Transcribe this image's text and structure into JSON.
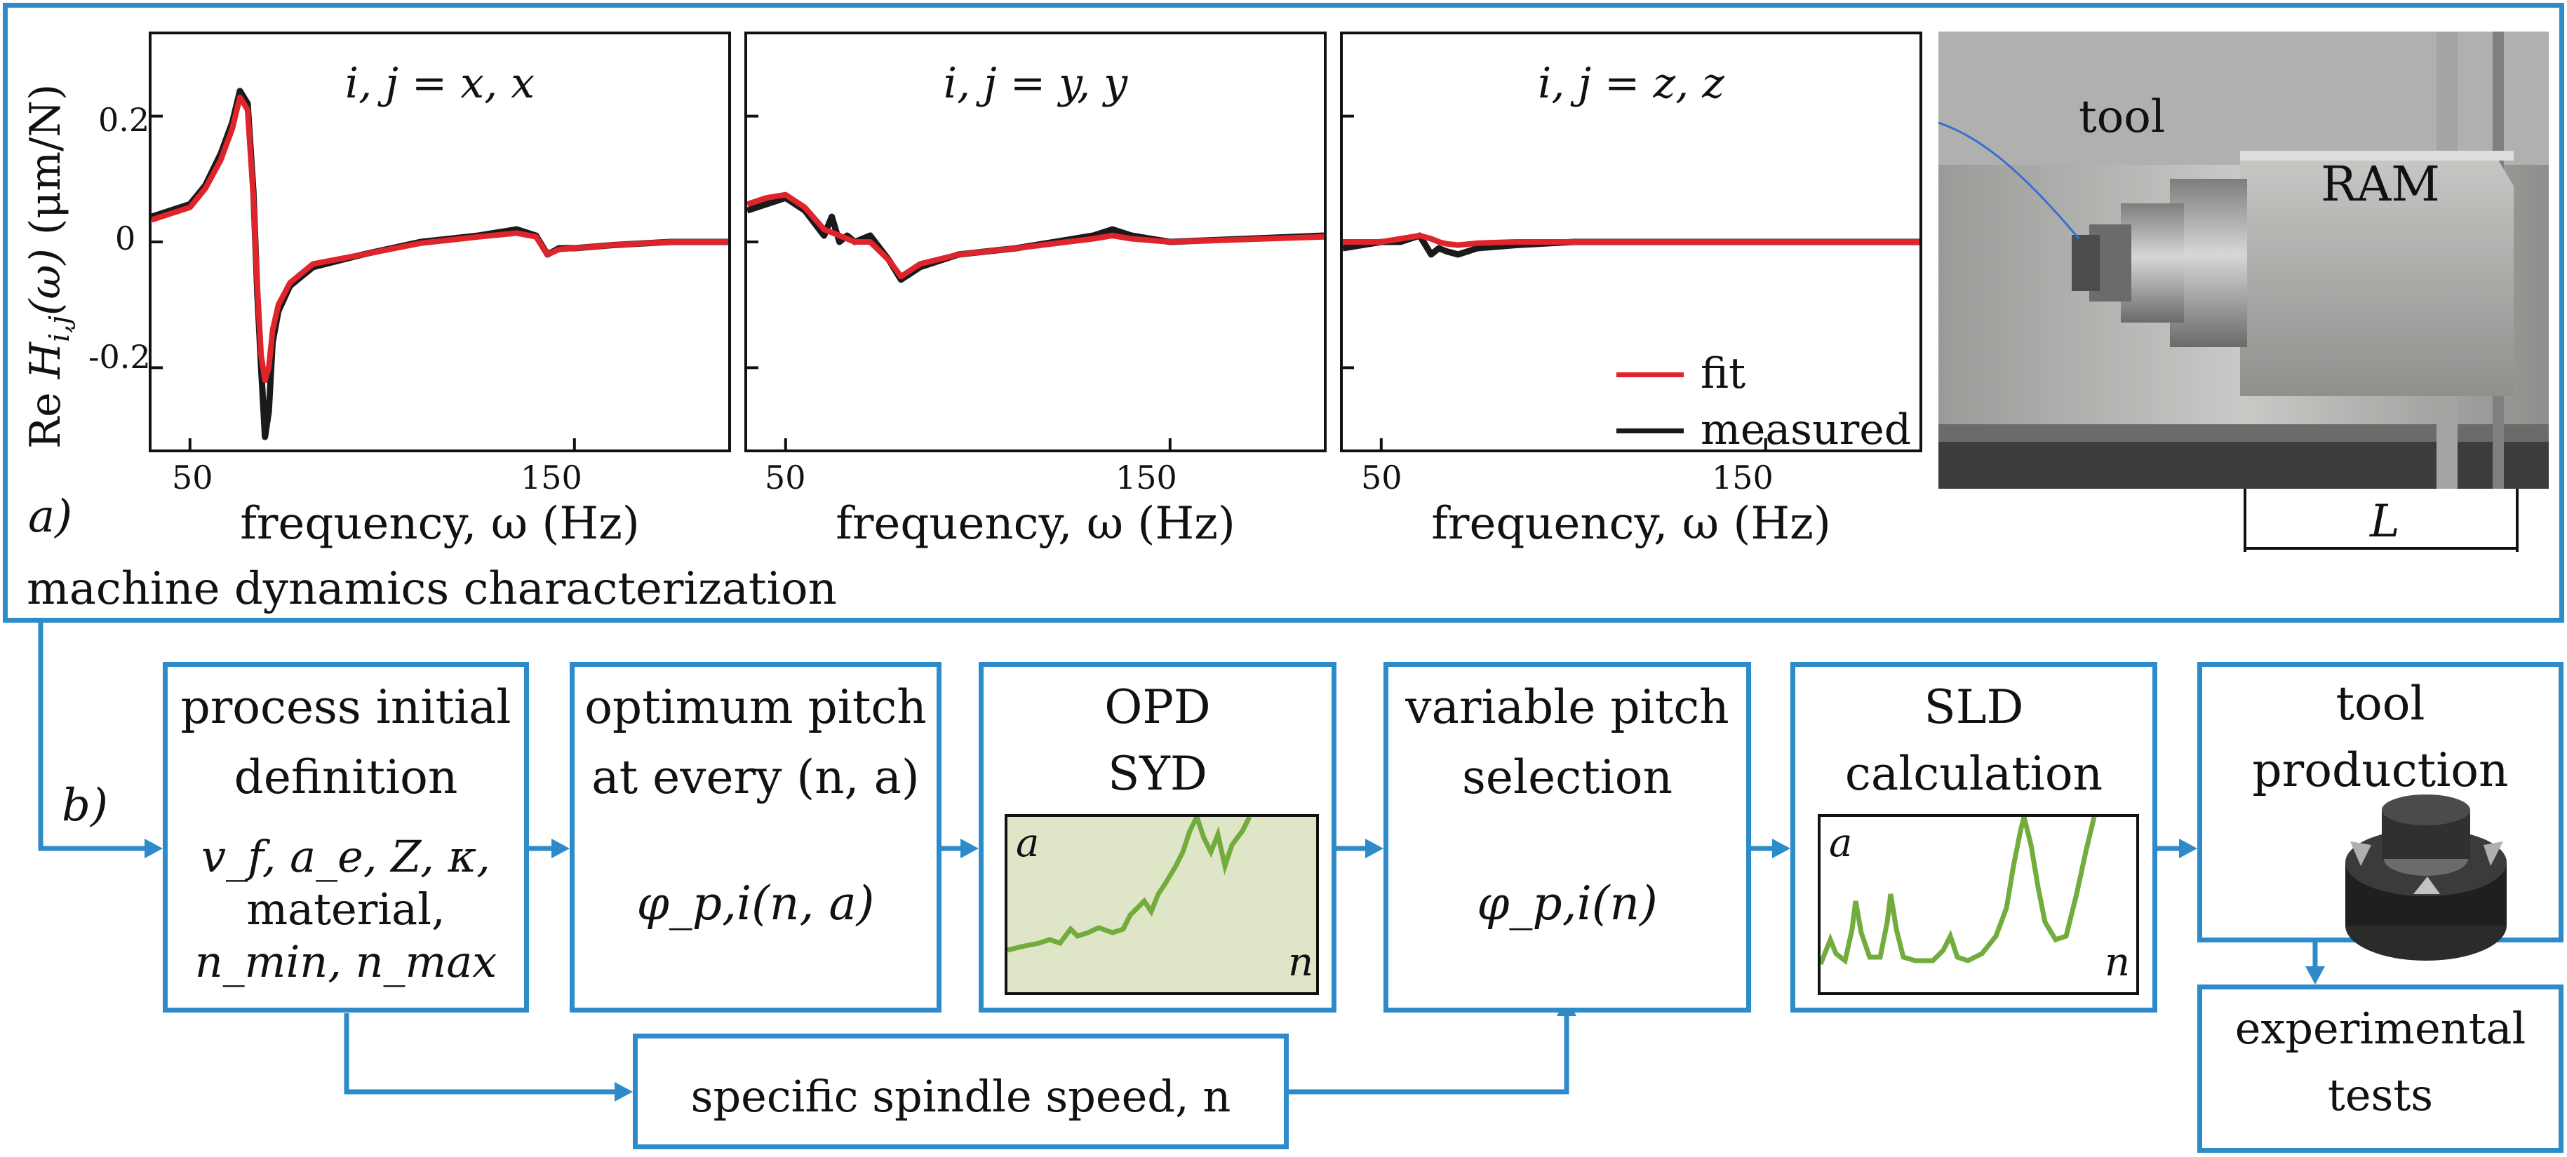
{
  "colors": {
    "accent_blue": "#2e8bc9",
    "fit_red": "#e0242b",
    "measured_black": "#1a1a1a",
    "curve_green": "#72ac3c",
    "shade_green": "#dfe6c8"
  },
  "panel_a": {
    "label": "a)",
    "caption": "machine dynamics characterization",
    "y_axis_label": "Re H_{i,j}(ω) (μm/N)",
    "y_axis_label_parts": {
      "re": "Re ",
      "h": "H",
      "sub": "i,j",
      "omega": "(ω)",
      "units": " (μm/N)"
    },
    "photo_labels": {
      "tool": "tool",
      "ram": "RAM",
      "length": "L"
    }
  },
  "chart_data": [
    {
      "type": "line",
      "title": "i, j = x, x",
      "xlabel": "frequency, ω (Hz)",
      "ylabel": "Re H_{i,j}(ω) (μm/N)",
      "xlim": [
        40,
        190
      ],
      "ylim": [
        -0.33,
        0.33
      ],
      "xticks": [
        50,
        150
      ],
      "yticks": [
        0.2,
        0,
        -0.2
      ],
      "ytick_labels": [
        "0.2",
        "0",
        "-0.2"
      ],
      "series": [
        {
          "name": "measured",
          "x": [
            40,
            45,
            50,
            54,
            58,
            61,
            63,
            65,
            66.5,
            67.5,
            68.5,
            69.5,
            70.5,
            71.5,
            73,
            76,
            82,
            95,
            110,
            125,
            135,
            140,
            143,
            146,
            150,
            160,
            175,
            190
          ],
          "y": [
            0.04,
            0.05,
            0.06,
            0.09,
            0.14,
            0.19,
            0.24,
            0.22,
            0.08,
            -0.08,
            -0.2,
            -0.31,
            -0.27,
            -0.16,
            -0.11,
            -0.07,
            -0.04,
            -0.02,
            0.0,
            0.01,
            0.02,
            0.01,
            -0.02,
            -0.01,
            -0.01,
            -0.005,
            0.0,
            0.0
          ]
        },
        {
          "name": "fit",
          "x": [
            40,
            45,
            50,
            54,
            58,
            61,
            63,
            65,
            66.5,
            67.5,
            68.5,
            69.5,
            70.5,
            71.5,
            73,
            76,
            82,
            95,
            110,
            125,
            135,
            140,
            143,
            146,
            150,
            160,
            175,
            190
          ],
          "y": [
            0.035,
            0.045,
            0.055,
            0.085,
            0.13,
            0.18,
            0.23,
            0.21,
            0.07,
            -0.07,
            -0.18,
            -0.22,
            -0.2,
            -0.14,
            -0.1,
            -0.065,
            -0.035,
            -0.02,
            -0.002,
            0.008,
            0.014,
            0.008,
            -0.02,
            -0.012,
            -0.01,
            -0.005,
            0.0,
            0.0
          ]
        }
      ]
    },
    {
      "type": "line",
      "title": "i, j = y, y",
      "xlabel": "frequency, ω (Hz)",
      "xlim": [
        40,
        190
      ],
      "ylim": [
        -0.33,
        0.33
      ],
      "xticks": [
        50,
        150
      ],
      "series": [
        {
          "name": "measured",
          "x": [
            40,
            45,
            50,
            55,
            60,
            62,
            64,
            66,
            68,
            72,
            77,
            80,
            85,
            95,
            110,
            130,
            135,
            140,
            150,
            170,
            190
          ],
          "y": [
            0.05,
            0.06,
            0.07,
            0.05,
            0.01,
            0.04,
            0.0,
            0.01,
            0.0,
            0.01,
            -0.03,
            -0.06,
            -0.04,
            -0.02,
            -0.01,
            0.01,
            0.02,
            0.01,
            0.0,
            0.005,
            0.01
          ]
        },
        {
          "name": "fit",
          "x": [
            40,
            45,
            50,
            55,
            60,
            62,
            64,
            66,
            68,
            72,
            77,
            80,
            85,
            95,
            110,
            130,
            135,
            140,
            150,
            170,
            190
          ],
          "y": [
            0.06,
            0.07,
            0.075,
            0.055,
            0.02,
            0.015,
            0.01,
            0.005,
            0.0,
            0.0,
            -0.03,
            -0.055,
            -0.035,
            -0.02,
            -0.01,
            0.005,
            0.01,
            0.005,
            0.0,
            0.004,
            0.008
          ]
        }
      ]
    },
    {
      "type": "line",
      "title": "i, j = z, z",
      "xlabel": "frequency, ω (Hz)",
      "xlim": [
        40,
        190
      ],
      "ylim": [
        -0.33,
        0.33
      ],
      "xticks": [
        50,
        150
      ],
      "legend": {
        "placement": "bottom-right",
        "entries": [
          "fit",
          "measured"
        ]
      },
      "series": [
        {
          "name": "measured",
          "x": [
            40,
            45,
            50,
            55,
            60,
            63,
            65,
            67,
            70,
            75,
            85,
            100,
            130,
            160,
            190
          ],
          "y": [
            -0.01,
            -0.005,
            0.0,
            0.0,
            0.01,
            -0.02,
            -0.01,
            -0.015,
            -0.02,
            -0.01,
            -0.005,
            0.0,
            0.0,
            0.0,
            0.0
          ]
        },
        {
          "name": "fit",
          "x": [
            40,
            45,
            50,
            55,
            60,
            63,
            65,
            67,
            70,
            75,
            85,
            100,
            130,
            160,
            190
          ],
          "y": [
            0.0,
            0.0,
            0.0,
            0.005,
            0.01,
            0.005,
            0.0,
            -0.003,
            -0.005,
            -0.002,
            0.0,
            0.0,
            0.0,
            0.0,
            0.0
          ]
        }
      ]
    }
  ],
  "panel_b": {
    "label": "b)",
    "process_initial": {
      "title_line1": "process initial",
      "title_line2": "definition",
      "params_line1": "v_f, a_e, Z, κ,",
      "params_line2": "material,",
      "params_line3": "n_min, n_max"
    },
    "optimum_pitch": {
      "title_line1": "optimum pitch",
      "title_line2": "at every (n, a)",
      "formula": "φ_p,i(n, a)"
    },
    "opd": {
      "title_line1": "OPD",
      "title_line2": "SYD",
      "axis_y": "a",
      "axis_x": "n"
    },
    "variable_pitch": {
      "title_line1": "variable pitch",
      "title_line2": "selection",
      "formula": "φ_p,i(n)"
    },
    "sld": {
      "title_line1": "SLD",
      "title_line2": "calculation",
      "axis_y": "a",
      "axis_x": "n"
    },
    "tool_production": {
      "title_line1": "tool",
      "title_line2": "production"
    },
    "experimental": {
      "title_line1": "experimental",
      "title_line2": "tests"
    },
    "spindle_speed": {
      "label": "specific spindle speed, n"
    }
  }
}
